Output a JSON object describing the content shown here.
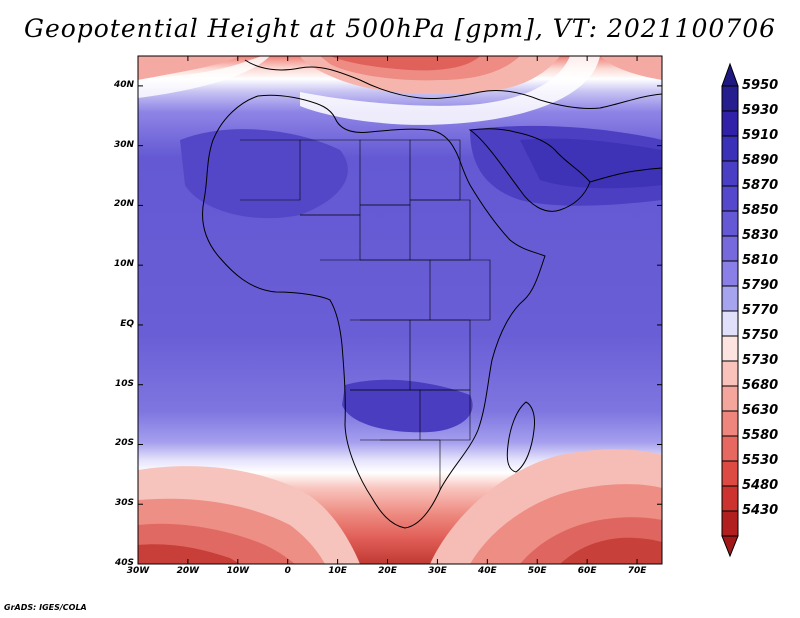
{
  "title": "Geopotential Height at 500hPa [gpm], VT: 2021100706",
  "footer": "GrADS: IGES/COLA",
  "map": {
    "lat_labels": [
      "40N",
      "30N",
      "20N",
      "10N",
      "EQ",
      "10S",
      "20S",
      "30S",
      "40S"
    ],
    "lon_labels": [
      "30W",
      "20W",
      "10W",
      "0",
      "10E",
      "20E",
      "30E",
      "40E",
      "50E",
      "60E",
      "70E"
    ],
    "lat_range": [
      -40,
      45
    ],
    "lon_range": [
      -30,
      75
    ],
    "colorbar_levels": [
      "5950",
      "5930",
      "5910",
      "5890",
      "5870",
      "5850",
      "5830",
      "5810",
      "5790",
      "5770",
      "5750",
      "5730",
      "5680",
      "5630",
      "5580",
      "5530",
      "5480",
      "5430"
    ],
    "colorbar_colors": [
      "#261d8f",
      "#3021a8",
      "#3b30b8",
      "#4a3fc4",
      "#5648cc",
      "#6558d4",
      "#7669dd",
      "#8a7fe6",
      "#a7a4ef",
      "#e0e0fb",
      "#fde4e0",
      "#f9c3bc",
      "#f4a59c",
      "#ee867d",
      "#e76861",
      "#dd4a44",
      "#cc332f",
      "#b21f1f"
    ]
  }
}
